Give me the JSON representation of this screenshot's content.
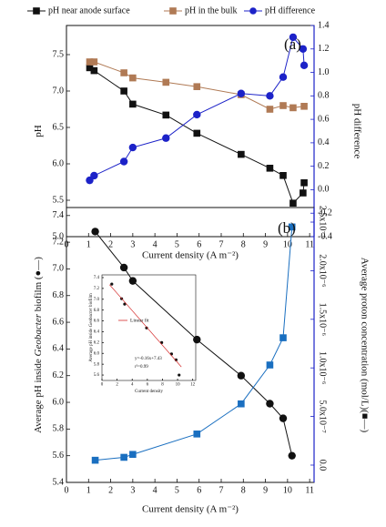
{
  "chart_data": [
    {
      "type": "line",
      "panel_label": "(a)",
      "xlabel": "Current density (A m⁻²)",
      "ylabel": [
        "pH"
      ],
      "y2label": "pH difference",
      "xlim": [
        0,
        11.2
      ],
      "xticks": [
        0,
        1,
        2,
        3,
        4,
        5,
        6,
        7,
        8,
        9,
        10,
        11
      ],
      "ylim": [
        5.0,
        7.9
      ],
      "yticks": [
        {
          "value": 5,
          "label": "5.0"
        },
        5.5,
        {
          "value": 6,
          "label": "6.0"
        },
        6.5,
        {
          "value": 7,
          "label": "7.0"
        },
        7.5
      ],
      "y2lim": [
        -0.4,
        1.4
      ],
      "y2ticks": [
        -0.4,
        -0.2,
        {
          "value": 0,
          "label": "0.0"
        },
        0.2,
        0.4,
        0.6,
        0.8,
        {
          "value": 1,
          "label": "1.0"
        },
        1.2,
        1.4
      ],
      "series": [
        {
          "name": "pH near anode surface",
          "color": "#111111",
          "marker": "square",
          "x": [
            1.05,
            1.25,
            2.6,
            3.0,
            4.5,
            5.9,
            7.9,
            9.2,
            9.8,
            10.25,
            10.7,
            10.75
          ],
          "values": [
            7.32,
            7.28,
            7.0,
            6.82,
            6.67,
            6.42,
            6.13,
            5.94,
            5.84,
            5.46,
            5.6,
            5.74
          ]
        },
        {
          "name": "pH in the bulk",
          "color": "#b07a55",
          "marker": "square",
          "x": [
            1.05,
            1.25,
            2.6,
            3.0,
            4.5,
            5.9,
            7.9,
            9.2,
            9.8,
            10.25,
            10.75
          ],
          "values": [
            7.4,
            7.4,
            7.25,
            7.18,
            7.12,
            7.06,
            6.95,
            6.75,
            6.8,
            6.77,
            6.79
          ]
        },
        {
          "name": "pH difference",
          "color": "#1c22c8",
          "marker": "circle",
          "axis": "y2",
          "x": [
            1.05,
            1.25,
            2.6,
            3.0,
            4.5,
            5.9,
            7.9,
            9.2,
            9.8,
            10.25,
            10.7,
            10.75
          ],
          "values": [
            0.08,
            0.12,
            0.24,
            0.36,
            0.44,
            0.64,
            0.82,
            0.8,
            0.96,
            1.3,
            1.2,
            1.06
          ]
        }
      ]
    },
    {
      "type": "line",
      "panel_label": "(b)",
      "xlabel": "Current density (A m⁻²)",
      "ylabel": [
        "Average pH inside ",
        "Geobacter",
        " biofilm (●—)"
      ],
      "y2label": "Average proton concentration (mol/L)(■—)",
      "xlim": [
        0,
        11.2
      ],
      "xticks": [
        0,
        1,
        2,
        3,
        4,
        5,
        6,
        7,
        8,
        9,
        10,
        11
      ],
      "ylim": [
        5.4,
        7.46
      ],
      "yticks": [
        5.4,
        5.6,
        5.8,
        {
          "value": 6,
          "label": "6.0"
        },
        6.2,
        6.4,
        6.6,
        6.8,
        {
          "value": 7,
          "label": "7.0"
        },
        7.2,
        7.4
      ],
      "y2lim": [
        -1.78e-07,
        2.65e-06
      ],
      "y2ticks": [
        {
          "value": 0,
          "label": "0.0"
        },
        {
          "value": 5e-07,
          "label": "5.0x10⁻⁷"
        },
        {
          "value": 1e-06,
          "label": "1.0x10⁻⁶"
        },
        {
          "value": 1.5e-06,
          "label": "1.5x10⁻⁶"
        },
        {
          "value": 2e-06,
          "label": "2.0x10⁻⁶"
        },
        {
          "value": 2.5e-06,
          "label": "2.5x10⁻⁶"
        }
      ],
      "series": [
        {
          "color": "#111111",
          "marker": "circle",
          "x": [
            1.3,
            2.6,
            3.0,
            5.9,
            7.9,
            9.2,
            9.8,
            10.2
          ],
          "values": [
            7.28,
            7.01,
            6.91,
            6.47,
            6.2,
            5.99,
            5.88,
            5.6
          ]
        },
        {
          "color": "#1a6fc0",
          "marker": "square",
          "axis": "y2",
          "x": [
            1.3,
            2.6,
            3.0,
            5.9,
            7.9,
            9.2,
            9.8,
            10.2
          ],
          "values": [
            5e-08,
            8e-08,
            1.1e-07,
            3.2e-07,
            6.3e-07,
            1.03e-06,
            1.31e-06,
            2.45e-06
          ]
        }
      ]
    },
    {
      "type": "line",
      "xlabel": "Current density",
      "ylabel": [
        "Average pH inside ",
        "Geobacter",
        " biofilm"
      ],
      "annotations": [
        "y=-0.16x+7.43",
        "r²=0.99"
      ],
      "xlim": [
        0,
        12.4
      ],
      "xticks": [
        0,
        2,
        4,
        6,
        8,
        10,
        12
      ],
      "ylim": [
        5.5,
        7.45
      ],
      "yticks": [
        5.6,
        5.8,
        {
          "value": 6,
          "label": "6.0"
        },
        6.2,
        6.4,
        6.6,
        6.8,
        {
          "value": 7,
          "label": "7.0"
        },
        7.2,
        7.4
      ],
      "series": [
        {
          "color": "#111111",
          "marker": "circle",
          "nolines": true,
          "x": [
            1.3,
            2.6,
            3.0,
            5.9,
            7.9,
            9.2,
            9.8,
            10.2
          ],
          "values": [
            7.28,
            7.01,
            6.91,
            6.47,
            6.2,
            5.99,
            5.88,
            5.6
          ]
        },
        {
          "name": "Linear fit",
          "color": "#d42a2a",
          "marker": "none",
          "x": [
            1.0,
            10.5
          ],
          "values": [
            7.27,
            5.75
          ]
        }
      ]
    }
  ]
}
